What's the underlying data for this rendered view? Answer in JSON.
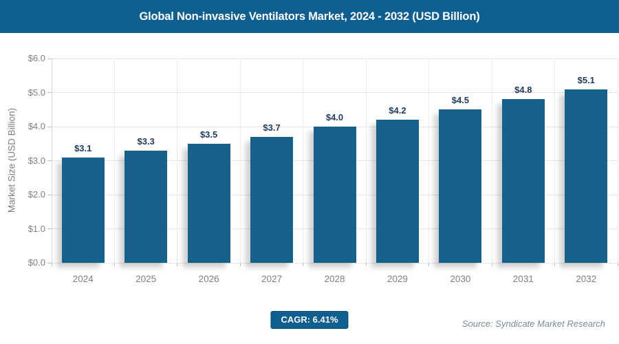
{
  "header": {
    "title": "Global Non-invasive Ventilators Market, 2024 - 2032 (USD Billion)"
  },
  "chart_data": {
    "type": "bar",
    "title": "Global Non-invasive Ventilators Market, 2024 - 2032 (USD Billion)",
    "categories": [
      "2024",
      "2025",
      "2026",
      "2027",
      "2028",
      "2029",
      "2030",
      "2031",
      "2032"
    ],
    "values": [
      3.1,
      3.3,
      3.5,
      3.7,
      4.0,
      4.2,
      4.5,
      4.8,
      5.1
    ],
    "bar_labels": [
      "$3.1",
      "$3.3",
      "$3.5",
      "$3.7",
      "$4.0",
      "$4.2",
      "$4.5",
      "$4.8",
      "$5.1"
    ],
    "xlabel": "",
    "ylabel": "Market Size (USD Billion)",
    "ylim": [
      0,
      6
    ],
    "ytick_step": 1,
    "ytick_labels": [
      "$0.0",
      "$1.0",
      "$2.0",
      "$3.0",
      "$4.0",
      "$5.0",
      "$6.0"
    ],
    "grid": true,
    "legend": "none",
    "bar_color": "#15618c",
    "value_label_color": "#1e3a5f",
    "header_bg_color": "#0e5e90"
  },
  "footer": {
    "cagr_label": "CAGR: 6.41%",
    "source": "Source: Syndicate Market Research"
  }
}
